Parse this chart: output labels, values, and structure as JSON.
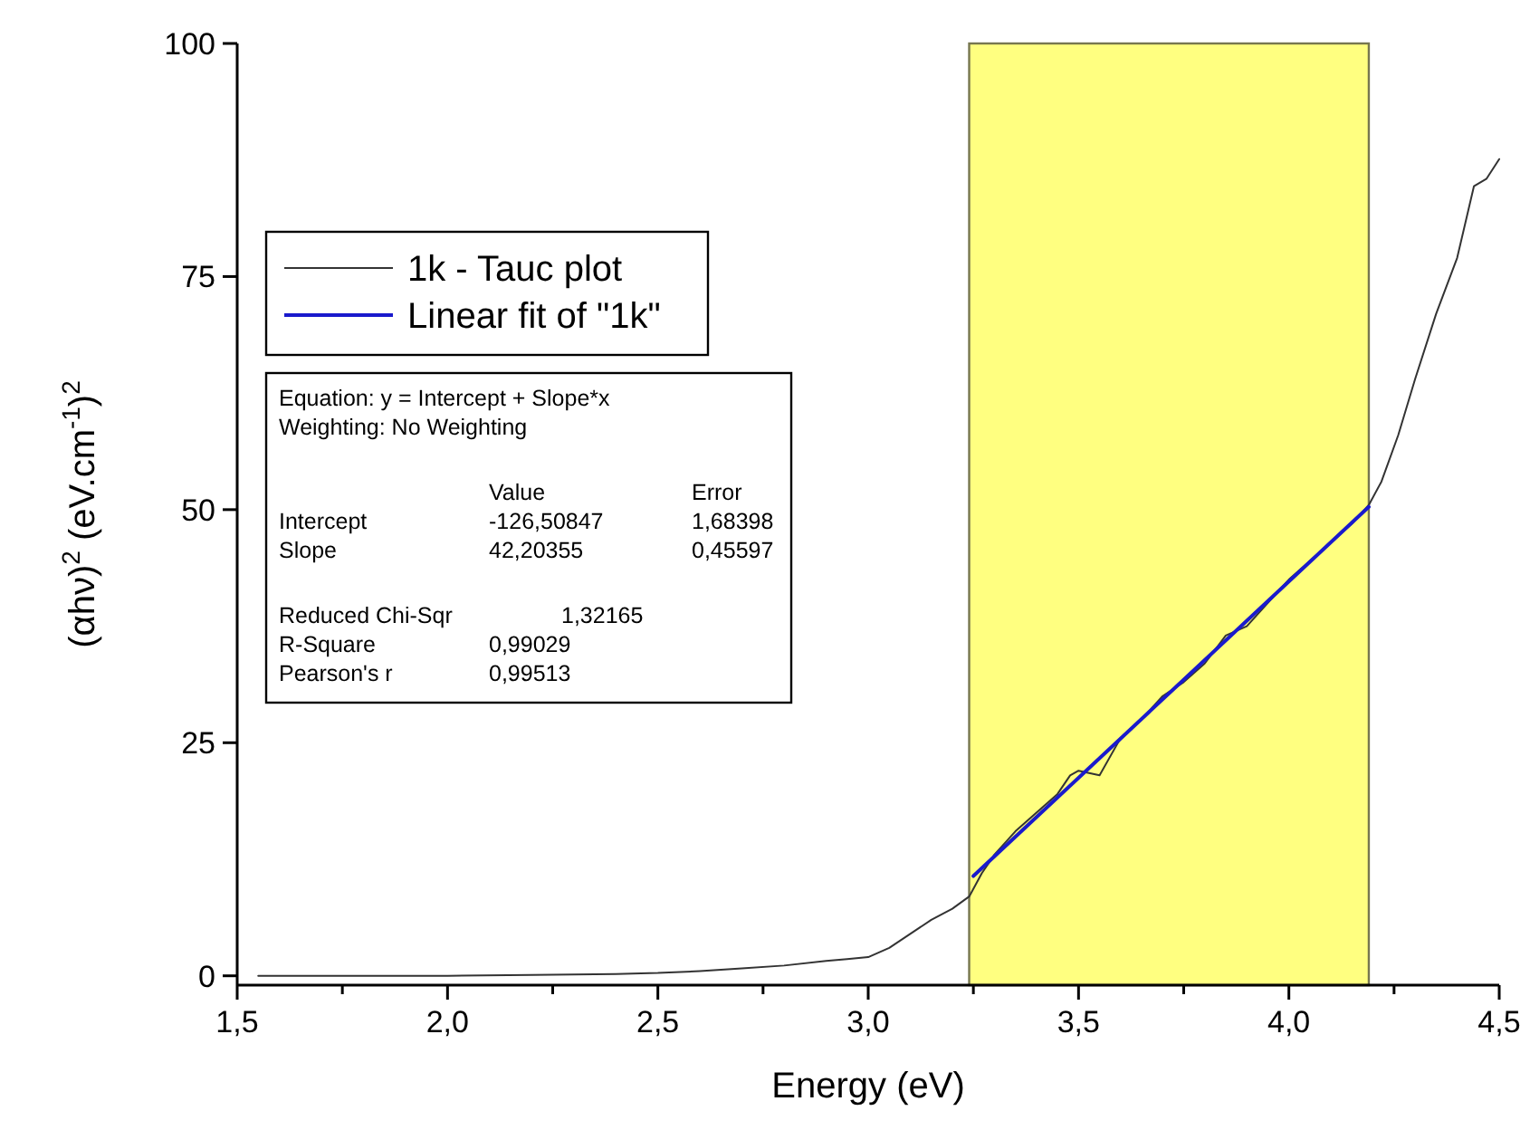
{
  "chart_data": {
    "type": "line",
    "xlabel": "Energy (eV)",
    "ylabel": "(αhν)$^{2}$ (eV.cm$^{-1}$)$^{2}$",
    "xlim": [
      1.5,
      4.5
    ],
    "ylim": [
      -1,
      100
    ],
    "xticks": [
      {
        "value": 1.5,
        "label": "1,5"
      },
      {
        "value": 1.75,
        "label": null
      },
      {
        "value": 2.0,
        "label": "2,0"
      },
      {
        "value": 2.25,
        "label": null
      },
      {
        "value": 2.5,
        "label": "2,5"
      },
      {
        "value": 2.75,
        "label": null
      },
      {
        "value": 3.0,
        "label": "3,0"
      },
      {
        "value": 3.25,
        "label": null
      },
      {
        "value": 3.5,
        "label": "3,5"
      },
      {
        "value": 3.75,
        "label": null
      },
      {
        "value": 4.0,
        "label": "4,0"
      },
      {
        "value": 4.25,
        "label": null
      },
      {
        "value": 4.5,
        "label": "4,5"
      }
    ],
    "yticks": [
      0,
      25,
      50,
      75,
      100
    ],
    "legend": "top left",
    "grid": false,
    "marker": "none",
    "line_style": "solid",
    "bands": [
      {
        "axis": "x",
        "from": 3.24,
        "to": 4.19,
        "color": "#ffff80"
      }
    ],
    "series": [
      {
        "name": "1k - Tauc plot",
        "color": "#333333",
        "x": [
          1.55,
          1.8,
          2.0,
          2.2,
          2.4,
          2.5,
          2.6,
          2.7,
          2.8,
          2.9,
          2.95,
          3.0,
          3.05,
          3.1,
          3.15,
          3.2,
          3.24,
          3.27,
          3.3,
          3.35,
          3.4,
          3.45,
          3.48,
          3.5,
          3.55,
          3.6,
          3.65,
          3.7,
          3.75,
          3.8,
          3.85,
          3.9,
          3.95,
          4.0,
          4.05,
          4.1,
          4.15,
          4.19,
          4.22,
          4.26,
          4.3,
          4.35,
          4.4,
          4.44,
          4.47,
          4.5
        ],
        "values": [
          0,
          0,
          0,
          0.1,
          0.2,
          0.3,
          0.5,
          0.8,
          1.1,
          1.6,
          1.8,
          2,
          3,
          4.5,
          6,
          7.2,
          8.5,
          11,
          13,
          15.5,
          17.5,
          19.5,
          21.5,
          22,
          21.5,
          25.5,
          27.5,
          30,
          31.5,
          33.5,
          36.5,
          37.5,
          40,
          42.5,
          44.5,
          46.5,
          48.5,
          50.5,
          53,
          58,
          64,
          71,
          77,
          84.7,
          85.5,
          87.6
        ]
      },
      {
        "name": "Linear fit of \"1k\"",
        "color": "#1a1acc",
        "x": [
          3.25,
          4.19
        ],
        "values": [
          10.7,
          50.3
        ]
      }
    ],
    "annotations": [
      "Equation: y = Intercept + Slope*x",
      "Weighting: No Weighting",
      "\tValue\tError",
      "Intercept\t-126,50847\t1,68398",
      "Slope\t42,20355\t0,45597",
      "Reduced Chi-Sqr\t\t1,32165",
      "R-Square\t0,99029",
      "Pearson's r\t0,99513"
    ]
  }
}
